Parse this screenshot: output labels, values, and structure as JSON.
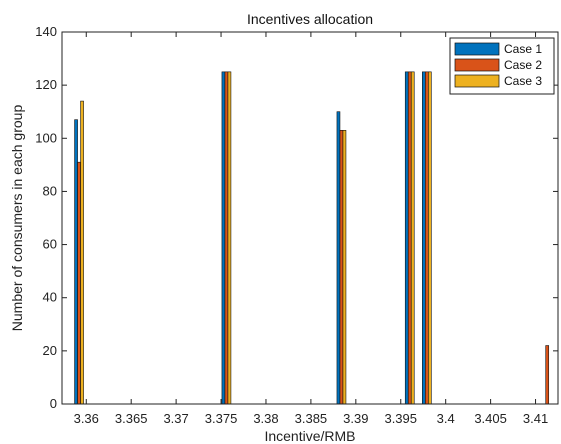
{
  "chart_data": {
    "type": "bar",
    "title": "Incentives allocation",
    "xlabel": "Incentive/RMB",
    "ylabel": "Number of consumers in each group",
    "xlim": [
      3.3573,
      3.4125
    ],
    "ylim": [
      0,
      140
    ],
    "x_ticks": [
      3.36,
      3.365,
      3.37,
      3.375,
      3.38,
      3.385,
      3.39,
      3.395,
      3.4,
      3.405,
      3.41
    ],
    "x_tick_labels": [
      "3.36",
      "3.365",
      "3.37",
      "3.375",
      "3.38",
      "3.385",
      "3.39",
      "3.395",
      "3.4",
      "3.405",
      "3.41"
    ],
    "y_ticks": [
      0,
      20,
      40,
      60,
      80,
      100,
      120,
      140
    ],
    "y_tick_labels": [
      "0",
      "20",
      "40",
      "60",
      "80",
      "100",
      "120",
      "140"
    ],
    "grid": false,
    "legend_position": "top-right",
    "series": [
      {
        "name": "Case 1",
        "color": "#0072BD",
        "points": [
          {
            "x": 3.3592,
            "value": 107
          },
          {
            "x": 3.3756,
            "value": 125
          },
          {
            "x": 3.3884,
            "value": 110
          },
          {
            "x": 3.396,
            "value": 125
          },
          {
            "x": 3.3979,
            "value": 125
          },
          {
            "x": 3.4113,
            "value": 0
          }
        ]
      },
      {
        "name": "Case 2",
        "color": "#D95319",
        "points": [
          {
            "x": 3.3592,
            "value": 91
          },
          {
            "x": 3.3756,
            "value": 125
          },
          {
            "x": 3.3884,
            "value": 103
          },
          {
            "x": 3.396,
            "value": 125
          },
          {
            "x": 3.3979,
            "value": 125
          },
          {
            "x": 3.4113,
            "value": 22
          }
        ]
      },
      {
        "name": "Case 3",
        "color": "#EDB120",
        "points": [
          {
            "x": 3.3592,
            "value": 114
          },
          {
            "x": 3.3756,
            "value": 125
          },
          {
            "x": 3.3884,
            "value": 103
          },
          {
            "x": 3.396,
            "value": 125
          },
          {
            "x": 3.3979,
            "value": 125
          },
          {
            "x": 3.4113,
            "value": 0
          }
        ]
      }
    ]
  }
}
